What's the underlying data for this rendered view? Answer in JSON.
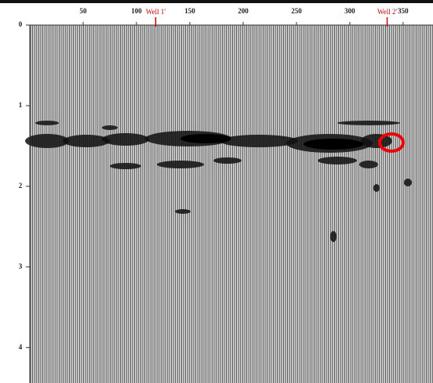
{
  "chart_data": {
    "type": "seismic",
    "xlim": [
      0,
      378
    ],
    "xticks": [
      50,
      100,
      150,
      200,
      250,
      300,
      350
    ],
    "ylim": [
      0,
      4.44
    ],
    "yticks": [
      0,
      1,
      2,
      3,
      4
    ],
    "annotations": [
      {
        "label": "Well 1'",
        "x": 118
      },
      {
        "label": "Well 2'",
        "x": 335
      }
    ],
    "color": "#c00000"
  }
}
